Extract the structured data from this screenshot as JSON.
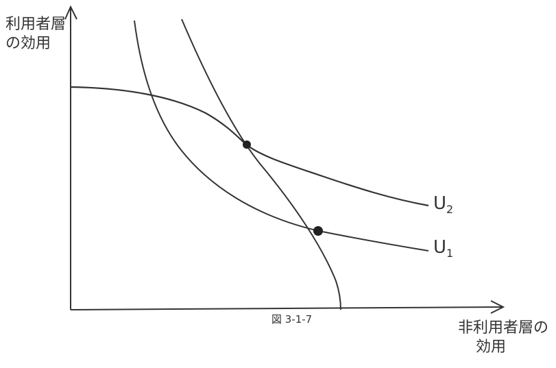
{
  "y_axis_label": [
    "利用者層",
    "の効用"
  ],
  "x_axis_label": [
    "非利用者層の",
    "効用"
  ],
  "caption": "図 3-1-7",
  "curves": [
    {
      "name": "U",
      "sub": "2"
    },
    {
      "name": "U",
      "sub": "1"
    }
  ],
  "stroke_color": "#333333"
}
